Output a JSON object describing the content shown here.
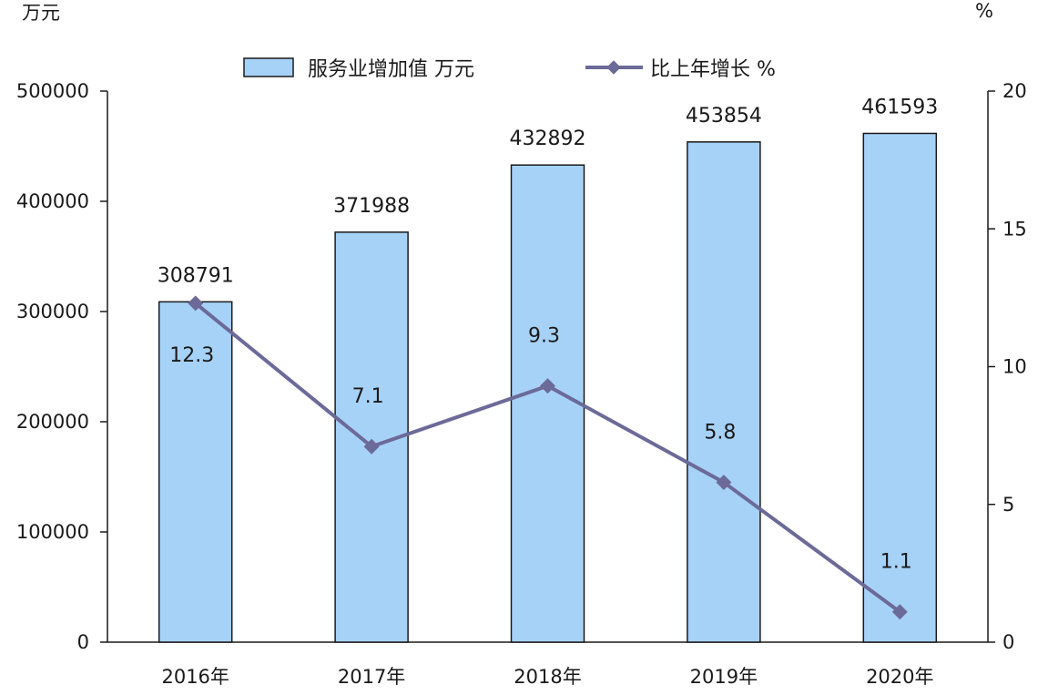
{
  "chart_data": {
    "type": "bar",
    "categories": [
      "2016年",
      "2017年",
      "2018年",
      "2019年",
      "2020年"
    ],
    "series": [
      {
        "name": "服务业增加值 万元",
        "type": "bar",
        "axis": "left",
        "values": [
          308791,
          371988,
          432892,
          453854,
          461593
        ],
        "labels": [
          "308791",
          "371988",
          "432892",
          "453854",
          "461593"
        ]
      },
      {
        "name": "比上年增长 %",
        "type": "line",
        "axis": "right",
        "values": [
          12.3,
          7.1,
          9.3,
          5.8,
          1.1
        ],
        "labels": [
          "12.3",
          "7.1",
          "9.3",
          "5.8",
          "1.1"
        ]
      }
    ],
    "left_axis": {
      "unit": "万元",
      "ylim": [
        0,
        500000
      ],
      "ticks": [
        "0",
        "100000",
        "200000",
        "300000",
        "400000",
        "500000"
      ]
    },
    "right_axis": {
      "unit": "%",
      "ylim": [
        0,
        20
      ],
      "ticks": [
        "0",
        "5",
        "10",
        "15",
        "20"
      ]
    },
    "legend_position": "top-center",
    "grid": false,
    "colors": {
      "bar_fill": "#a7d2f7",
      "bar_stroke": "#1a1a1a",
      "line": "#6b6a98",
      "marker": "#6b6a98",
      "axis": "#1a1a1a"
    }
  }
}
